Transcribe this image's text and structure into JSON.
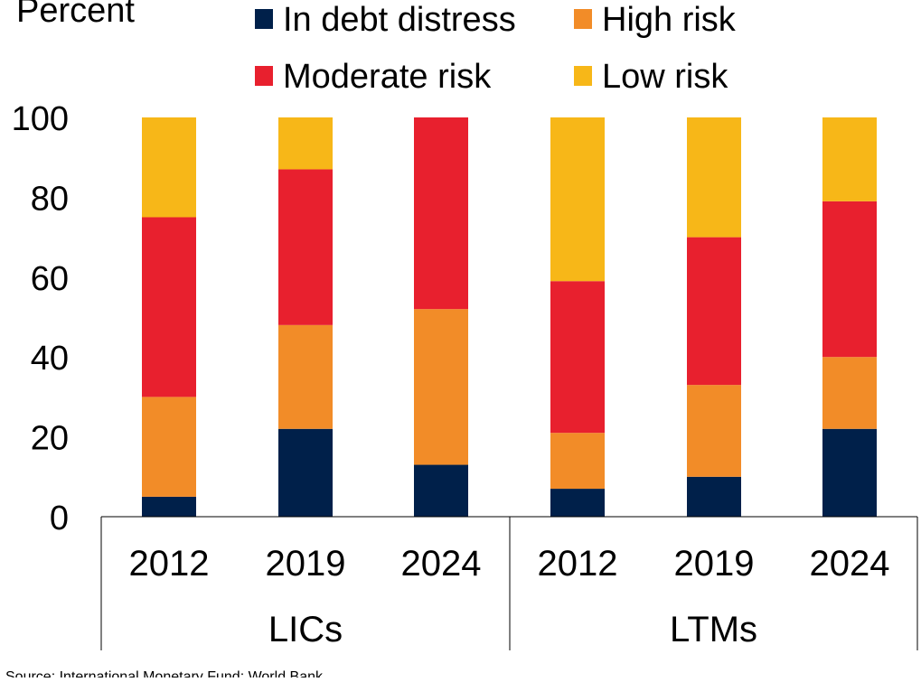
{
  "chart_data": {
    "type": "bar",
    "stacked": true,
    "title": "",
    "ylabel": "Percent",
    "xlabel": "",
    "ylim": [
      0,
      100
    ],
    "yticks": [
      0,
      20,
      40,
      60,
      80,
      100
    ],
    "grid": false,
    "legend_position": "top",
    "groups": [
      {
        "label": "LICs",
        "categories": [
          "2012",
          "2019",
          "2024"
        ]
      },
      {
        "label": "LTMs",
        "categories": [
          "2012",
          "2019",
          "2024"
        ]
      }
    ],
    "categories": [
      "2012",
      "2019",
      "2024",
      "2012",
      "2019",
      "2024"
    ],
    "series": [
      {
        "name": "In debt distress",
        "color": "#00204a",
        "values": [
          5,
          22,
          13,
          7,
          10,
          22
        ]
      },
      {
        "name": "High risk",
        "color": "#f28c28",
        "values": [
          25,
          26,
          39,
          14,
          23,
          18
        ]
      },
      {
        "name": "Moderate risk",
        "color": "#e8202e",
        "values": [
          45,
          39,
          48,
          38,
          37,
          39
        ]
      },
      {
        "name": "Low risk",
        "color": "#f7b718",
        "values": [
          25,
          13,
          0,
          41,
          30,
          21
        ]
      }
    ]
  },
  "footer": {
    "source": "Source: International Monetary Fund; World Bank."
  }
}
